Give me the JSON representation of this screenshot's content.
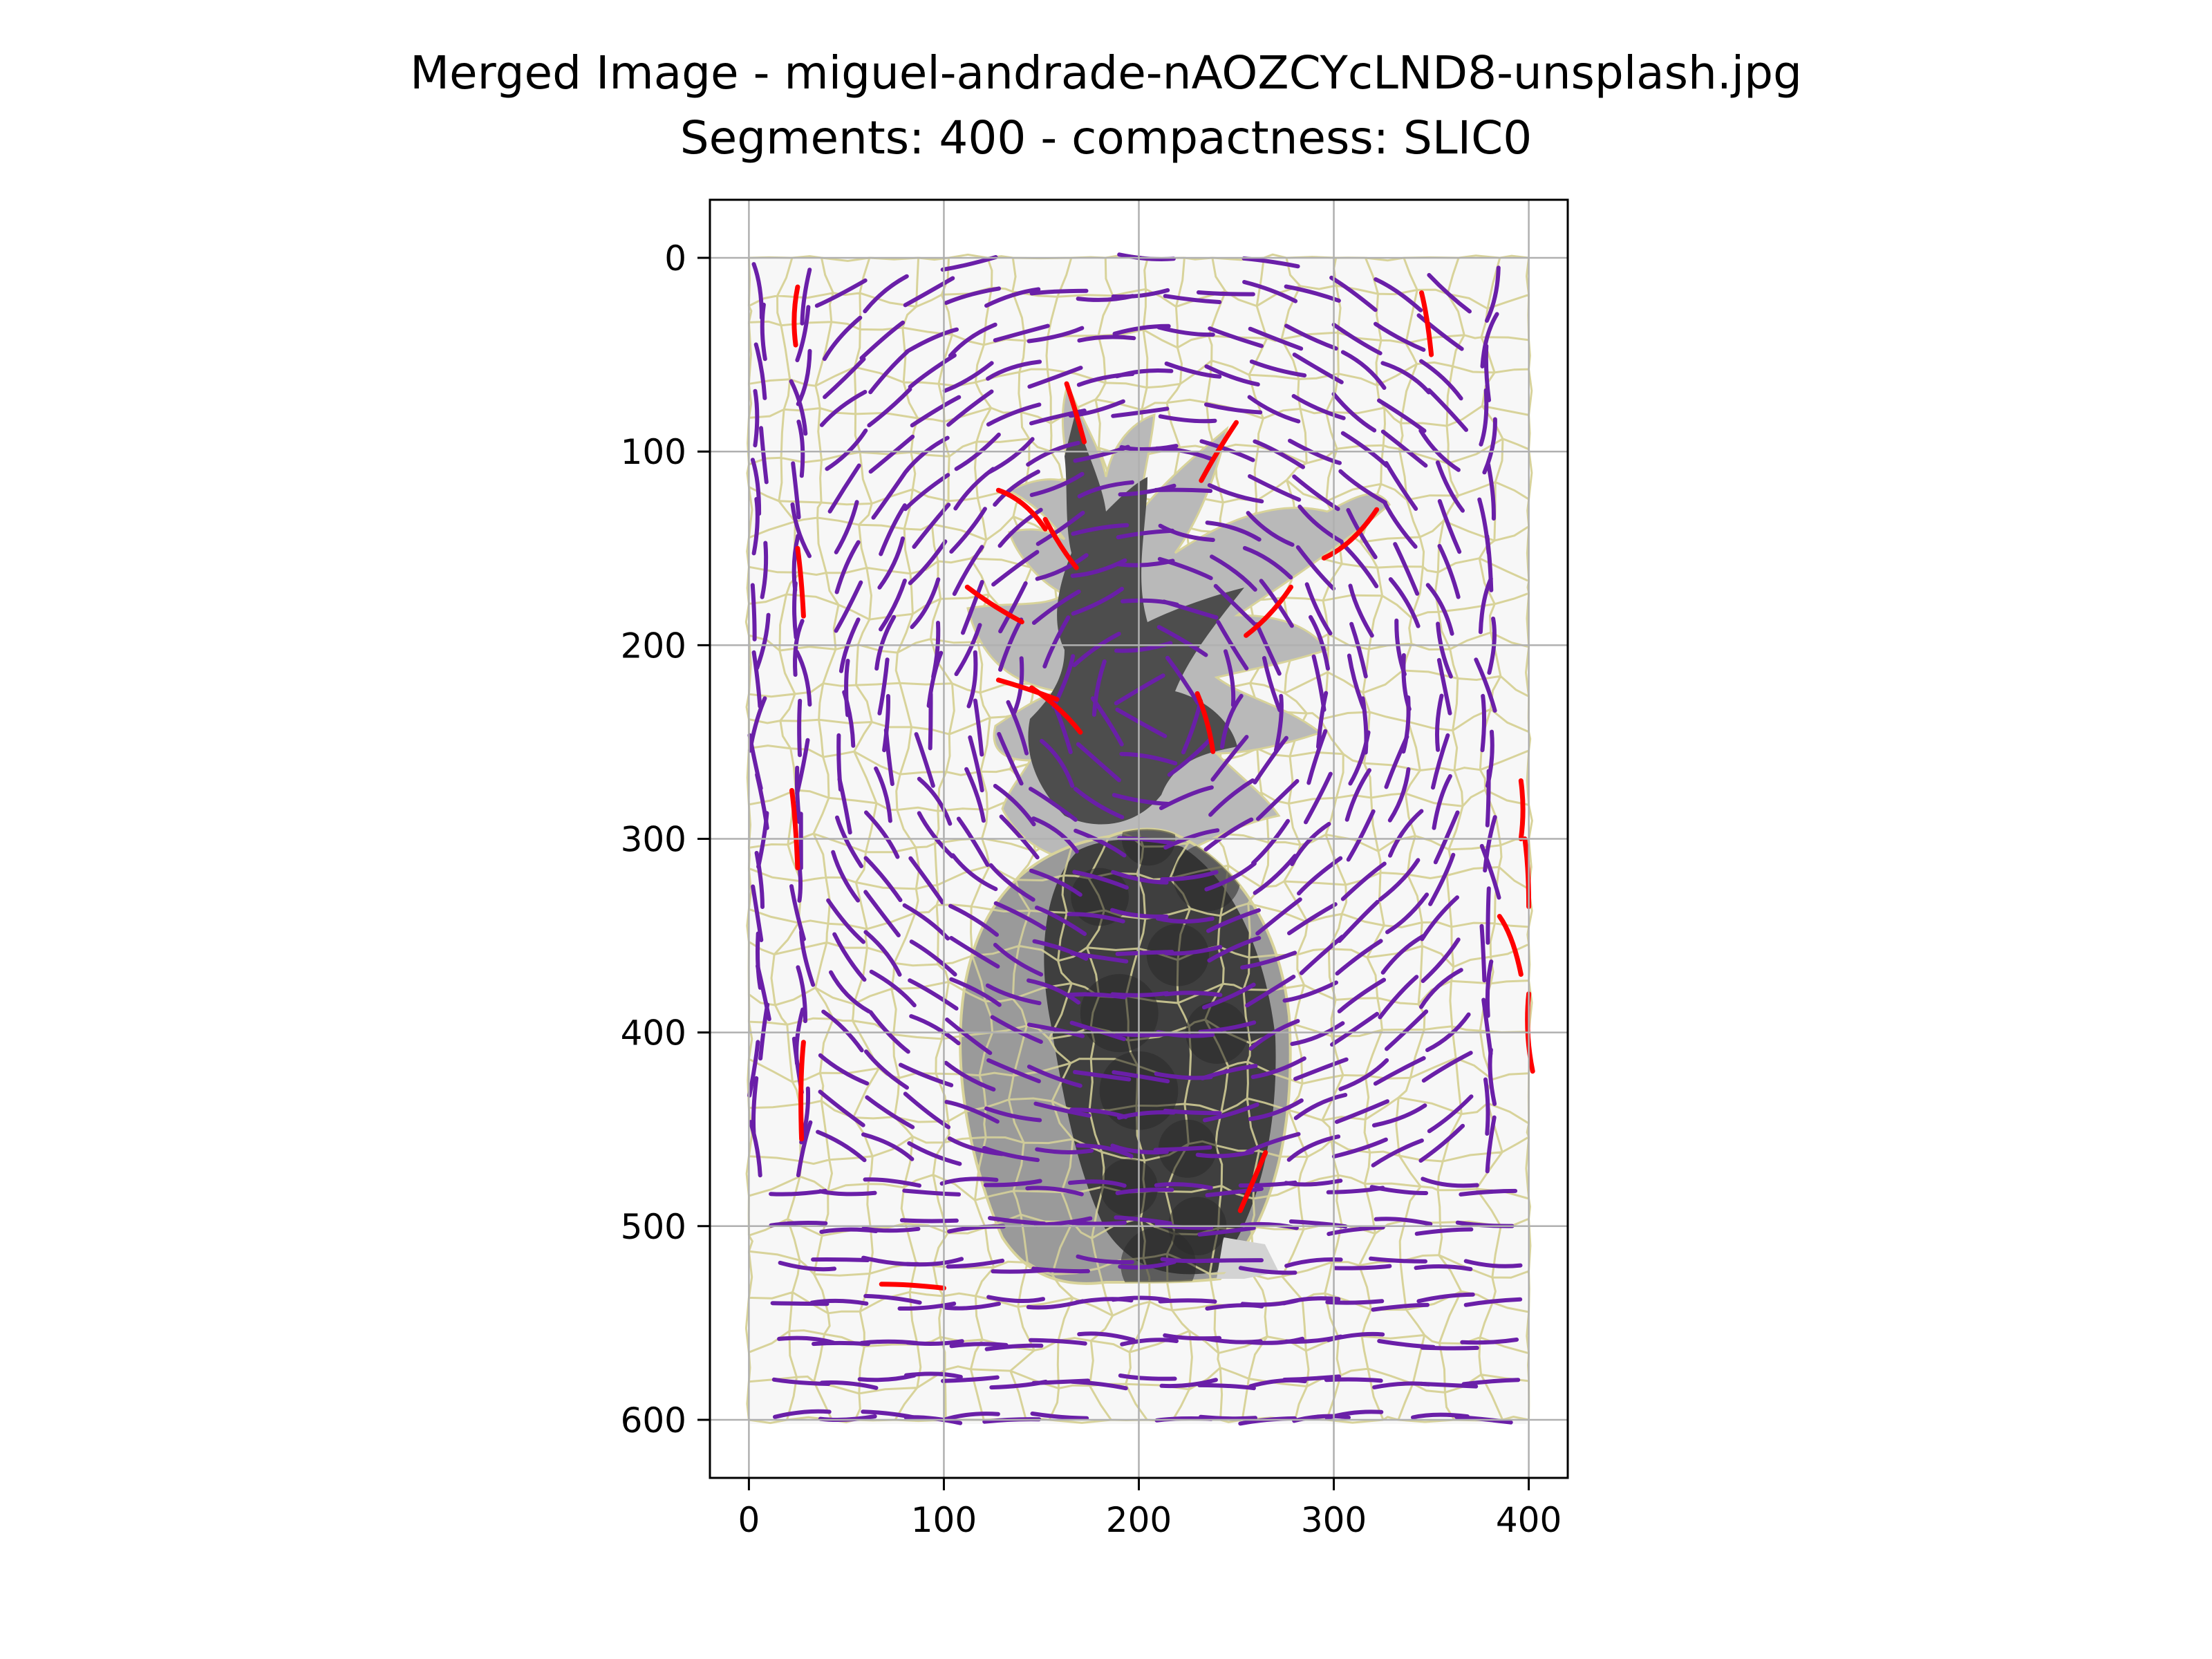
{
  "chart_data": {
    "type": "image",
    "title_lines": [
      "Merged Image - miguel-andrade-nAOZCYcLND8-unsplash.jpg",
      "Segments: 400 - compactness: SLIC0"
    ],
    "xlabel": "",
    "ylabel": "",
    "xlim": [
      -20,
      420
    ],
    "ylim": [
      630,
      -30
    ],
    "y_inverted": true,
    "x_ticks": [
      0,
      100,
      200,
      300,
      400
    ],
    "y_ticks": [
      0,
      100,
      200,
      300,
      400,
      500,
      600
    ],
    "grid": true,
    "image_extent": {
      "x": [
        0,
        400
      ],
      "y": [
        0,
        600
      ]
    },
    "image_description_colors": {
      "background": "#f7f7f7",
      "segment_boundaries": "#d8d39a",
      "leaves_light": "#b8b8b8",
      "leaves_dark": "#4a4a4a",
      "fruit_body": "#3a3a3a",
      "fruit_rim": "#8a8a8a"
    },
    "stroke_colors": {
      "normal": "#6a1fa8",
      "highlight": "#ff0000"
    },
    "grid_color": "#b0b0b0",
    "axes_color": "#000000",
    "highlighted_strokes": [
      [
        [
          25,
          15
        ],
        [
          22,
          30
        ],
        [
          24,
          45
        ]
      ],
      [
        [
          345,
          18
        ],
        [
          348,
          30
        ],
        [
          350,
          50
        ]
      ],
      [
        [
          163,
          65
        ],
        [
          168,
          80
        ],
        [
          172,
          95
        ]
      ],
      [
        [
          250,
          85
        ],
        [
          240,
          100
        ],
        [
          232,
          115
        ]
      ],
      [
        [
          128,
          120
        ],
        [
          142,
          125
        ],
        [
          152,
          140
        ]
      ],
      [
        [
          152,
          135
        ],
        [
          160,
          150
        ],
        [
          168,
          160
        ]
      ],
      [
        [
          112,
          170
        ],
        [
          125,
          180
        ],
        [
          140,
          188
        ]
      ],
      [
        [
          295,
          155
        ],
        [
          310,
          148
        ],
        [
          322,
          130
        ]
      ],
      [
        [
          255,
          195
        ],
        [
          268,
          185
        ],
        [
          278,
          170
        ]
      ],
      [
        [
          128,
          218
        ],
        [
          142,
          222
        ],
        [
          158,
          228
        ]
      ],
      [
        [
          145,
          222
        ],
        [
          160,
          232
        ],
        [
          170,
          245
        ]
      ],
      [
        [
          230,
          225
        ],
        [
          236,
          240
        ],
        [
          238,
          255
        ]
      ],
      [
        [
          25,
          150
        ],
        [
          27,
          165
        ],
        [
          28,
          185
        ]
      ],
      [
        [
          22,
          275
        ],
        [
          24,
          290
        ],
        [
          25,
          315
        ]
      ],
      [
        [
          396,
          270
        ],
        [
          398,
          285
        ],
        [
          396,
          300
        ]
      ],
      [
        [
          398,
          300
        ],
        [
          400,
          315
        ],
        [
          400,
          335
        ]
      ],
      [
        [
          385,
          340
        ],
        [
          392,
          350
        ],
        [
          396,
          370
        ]
      ],
      [
        [
          400,
          380
        ],
        [
          398,
          400
        ],
        [
          402,
          420
        ]
      ],
      [
        [
          28,
          405
        ],
        [
          26,
          425
        ],
        [
          27,
          455
        ]
      ],
      [
        [
          252,
          492
        ],
        [
          258,
          478
        ],
        [
          265,
          462
        ]
      ],
      [
        [
          68,
          530
        ],
        [
          82,
          530
        ],
        [
          100,
          532
        ]
      ]
    ]
  }
}
